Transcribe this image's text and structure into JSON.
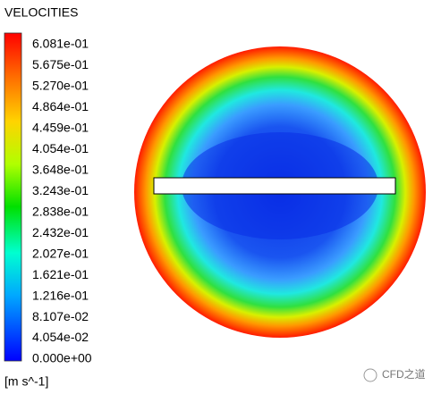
{
  "title": "VELOCITIES",
  "legend": {
    "labels": [
      "6.081e-01",
      "5.675e-01",
      "5.270e-01",
      "4.864e-01",
      "4.459e-01",
      "4.054e-01",
      "3.648e-01",
      "3.243e-01",
      "2.838e-01",
      "2.432e-01",
      "2.027e-01",
      "1.621e-01",
      "1.216e-01",
      "8.107e-02",
      "4.054e-02",
      "0.000e+00"
    ],
    "unit": "[m s^-1]"
  },
  "watermark": "CFD之道"
}
